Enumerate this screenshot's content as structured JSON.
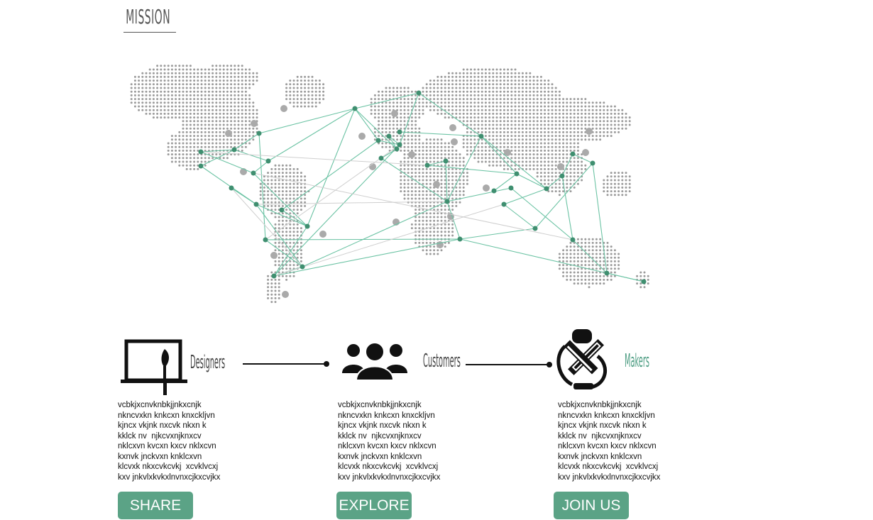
{
  "heading": "MISSION",
  "colors": {
    "accent": "#5ba386",
    "network_line": "#6cc3a4",
    "node": "#3f8f70",
    "dots": "#9b9b9b"
  },
  "map": {
    "icon": "world-dot-map"
  },
  "columns": [
    {
      "id": "designers",
      "label": "Designers",
      "icon": "laptop-brush-icon",
      "description": "vcbkjxcnvknbkjjnkxcnjk\nnkncvxkn knkcxn knxckljvn\nkjncx vkjnk nxcvk nkxn k\nkklck nv  njkcvxnjknxcv\nnklcxvn kvcxn kxcv nklxcvn\nkxnvk jnckvxn knklcxvn\nklcvxk nkxcvkcvkj  xcvklvcxj\nkxv jnkvlxkvkxlnvnxcjkxcvjkx",
      "button": "SHARE"
    },
    {
      "id": "customers",
      "label": "Customers",
      "icon": "people-group-icon",
      "description": "vcbkjxcnvknbkjjnkxcnjk\nnkncvxkn knkcxn knxckljvn\nkjncx vkjnk nxcvk nkxn k\nkklck nv  njkcvxnjknxcv\nnklcxvn kvcxn kxcv nklxcvn\nkxnvk jnckvxn knklcxvn\nklcvxk nkxcvkcvkj  xcvklvcxj\nkxv jnkvlxkvkxlnvnxcjkxcvjkx",
      "button": "EXPLORE"
    },
    {
      "id": "makers",
      "label": "Makers",
      "icon": "maker-tools-icon",
      "description": "vcbkjxcnvknbkjjnkxcnjk\nnkncvxkn knkcxn knxckljvn\nkjncx vkjnk nxcvk nkxn k\nkklck nv  njkcvxnjknxcv\nnklcxvn kvcxn kxcv nklxcvn\nkxnvk jnckvxn knklcxvn\nklcvxk nkxcvkcvkj  xcvklvcxj\nkxv jnkvlxkvkxlnvnxcjkxcvjkx",
      "button": "JOIN US"
    }
  ]
}
